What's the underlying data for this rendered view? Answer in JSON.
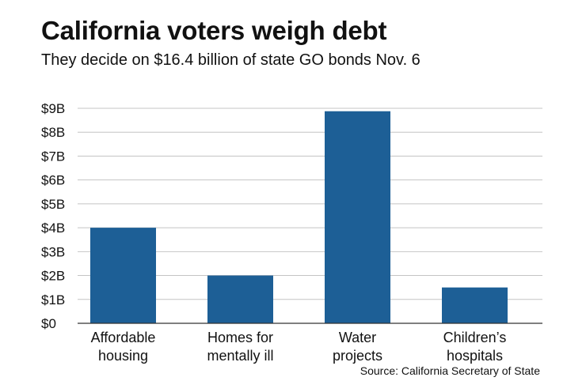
{
  "chart_data": {
    "type": "bar",
    "title": "California voters weigh debt",
    "subtitle": "They decide on $16.4 billion of state GO bonds Nov. 6",
    "categories": [
      [
        "Affordable",
        "housing"
      ],
      [
        "Homes for",
        "mentally ill"
      ],
      [
        "Water",
        "projects"
      ],
      [
        "Children’s",
        "hospitals"
      ]
    ],
    "values": [
      4,
      2,
      8.877,
      1.5
    ],
    "unit": "billion USD",
    "ylim": [
      0,
      9
    ],
    "yticks": [
      0,
      1,
      2,
      3,
      4,
      5,
      6,
      7,
      8,
      9
    ],
    "ytick_labels": [
      "$0",
      "$1B",
      "$2B",
      "$3B",
      "$4B",
      "$5B",
      "$6B",
      "$7B",
      "$8B",
      "$9B"
    ],
    "xlabel": "",
    "ylabel": "",
    "grid": true,
    "bar_color": "#1d5f96",
    "grid_color": "#c4c4c4",
    "axis_color": "#333333",
    "source": "Source: California Secretary of State"
  }
}
